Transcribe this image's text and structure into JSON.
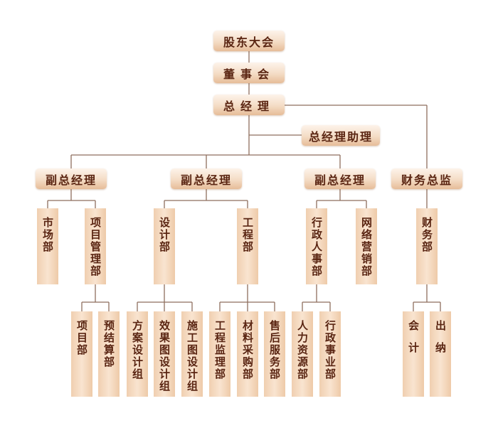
{
  "colors": {
    "box_text": "#5a2512",
    "line": "#8e6e5e",
    "box_light": "#fdf3ea",
    "box_dark": "#e6bc98"
  },
  "top": {
    "shareholders": "股东大会",
    "board": "董事会",
    "gm": "总经理",
    "gm_assistant": "总经理助理"
  },
  "level2": {
    "vp1": "副总经理",
    "vp2": "副总经理",
    "vp3": "副总经理",
    "cfo": "财务总监"
  },
  "departments": {
    "market": "市场部",
    "project_mgmt": "项目管理部",
    "design": "设计部",
    "engineering": "工程部",
    "admin_hr": "行政人事部",
    "online_marketing": "网络营销部",
    "finance": "财务部"
  },
  "units": {
    "project": "项目部",
    "budget": "预结算部",
    "scheme_design": "方案设计组",
    "rendering_design": "效果图设计组",
    "construction_design": "施工图设计组",
    "supervision": "工程监理部",
    "procurement": "材料采购部",
    "after_sales": "售后服务部",
    "hr": "人力资源部",
    "admin_affairs": "行政事业部",
    "accounting": "会计",
    "cashier": "出纳"
  }
}
